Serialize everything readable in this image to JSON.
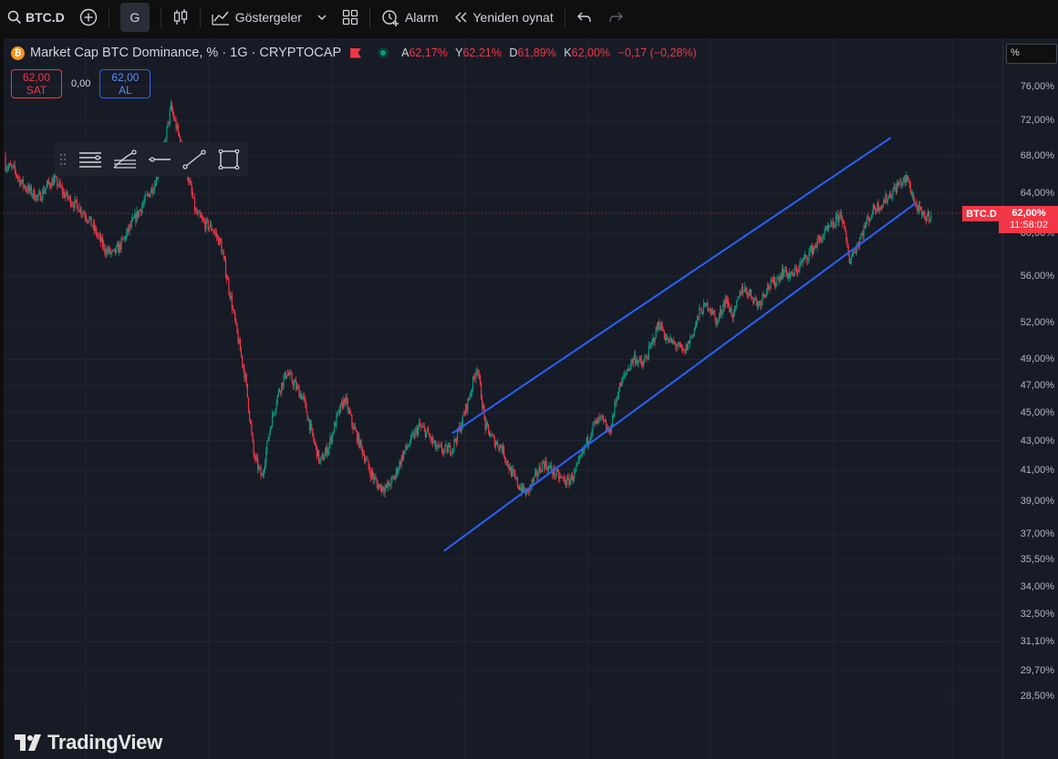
{
  "toolbar": {
    "symbol": "BTC.D",
    "interval": "G",
    "indicators_label": "Göstergeler",
    "alarm_label": "Alarm",
    "replay_label": "Yeniden oynat"
  },
  "legend": {
    "title": "Market Cap BTC Dominance, % · 1G · CRYPTOCAP",
    "open_key": "A",
    "open_value": "62,17%",
    "high_key": "Y",
    "high_value": "62,21%",
    "low_key": "D",
    "low_value": "61,89%",
    "close_key": "K",
    "close_value": "62,00%",
    "change": "−0,17 (−0,28%)"
  },
  "trade": {
    "sell_price": "62,00",
    "sell_label": "SAT",
    "spread": "0,00",
    "buy_price": "62,00",
    "buy_label": "AL"
  },
  "axis": {
    "unit": "%",
    "ticks": [
      "76,00%",
      "72,00%",
      "68,00%",
      "64,00%",
      "60,00%",
      "56,00%",
      "52,00%",
      "49,00%",
      "47,00%",
      "45,00%",
      "43,00%",
      "41,00%",
      "39,00%",
      "37,00%",
      "35,50%",
      "34,00%",
      "32,50%",
      "31,10%",
      "29,70%",
      "28,50%"
    ],
    "last_price": "62,00%",
    "countdown": "11:58:02",
    "symbol_tag": "BTC.D"
  },
  "watermark": "TradingView",
  "colors": {
    "up": "#089981",
    "down": "#f23645",
    "channel": "#2962ff",
    "background": "#171b26"
  },
  "chart_data": {
    "type": "candlestick",
    "series": [
      {
        "name": "BTC.D",
        "values": [
          67,
          66.5,
          65,
          64.2,
          63.5,
          64.8,
          65.5,
          64,
          63.2,
          62.5,
          61.5,
          60,
          58.5,
          58,
          59,
          60.5,
          62,
          63.5,
          65,
          68,
          73.5,
          70,
          66,
          62,
          61,
          60.5,
          59,
          55,
          51,
          47.5,
          42,
          40.5,
          44,
          46.5,
          48,
          47,
          46,
          43.5,
          41.5,
          42.5,
          44.5,
          46,
          44,
          42.5,
          41,
          40,
          39.8,
          40.5,
          42,
          43,
          44,
          43.5,
          42.5,
          42.3,
          42.5,
          44,
          46,
          48.5,
          44,
          43,
          42.5,
          41,
          40,
          39.5,
          40.5,
          41.5,
          41,
          40.5,
          40.2,
          41,
          42.5,
          44,
          44.5,
          43.5,
          46.5,
          48,
          49.2,
          48.5,
          50,
          52,
          50.5,
          50.2,
          49.5,
          51,
          53,
          53.5,
          52,
          54,
          52.5,
          55,
          54.5,
          53.5,
          55,
          55.5,
          56.5,
          56,
          57,
          58,
          59,
          60,
          60.8,
          62,
          57.5,
          59,
          61,
          62.5,
          63,
          64,
          65,
          65.5,
          62.8,
          61.5,
          62
        ],
        "first": {
          "x": 0,
          "open": 68,
          "close": 67
        },
        "last": {
          "x": 109,
          "open": 62.17,
          "high": 62.21,
          "low": 61.89,
          "close": 62.0
        }
      }
    ],
    "annotations": [
      {
        "type": "parallel-channel-upper",
        "from": [
          54,
          43.5
        ],
        "to": [
          107,
          70
        ]
      },
      {
        "type": "parallel-channel-lower",
        "from": [
          53,
          36
        ],
        "to": [
          110,
          63
        ]
      }
    ],
    "ylim": [
      28,
      79
    ],
    "scale": "log"
  }
}
